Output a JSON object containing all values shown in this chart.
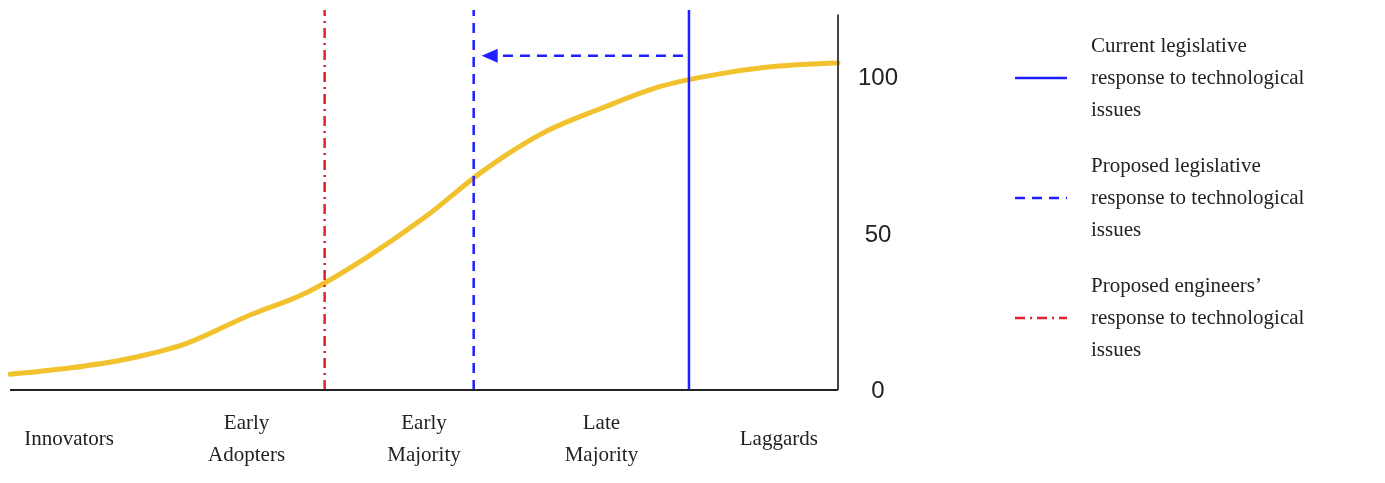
{
  "chart_data": {
    "type": "line",
    "categories": [
      null,
      "Innovators",
      null,
      null,
      "Early Adopters",
      null,
      null,
      "Early Majority",
      null,
      null,
      "Late Majority",
      null,
      null,
      "Laggards",
      null
    ],
    "series": [
      {
        "color": "#f2c12e",
        "values": [
          5,
          7,
          10,
          15,
          23.5,
          31,
          42,
          55,
          70,
          82,
          90,
          97,
          101,
          103.5,
          104.5
        ]
      }
    ],
    "ylim": [
      0,
      120
    ],
    "yticks": [
      0,
      50,
      100
    ],
    "grid": false,
    "marker": "none",
    "annotations": [
      "Current legislative response to technological issues",
      "Proposed legislative response to technological issues",
      "Proposed engineers’ response to technological issues"
    ]
  }
}
